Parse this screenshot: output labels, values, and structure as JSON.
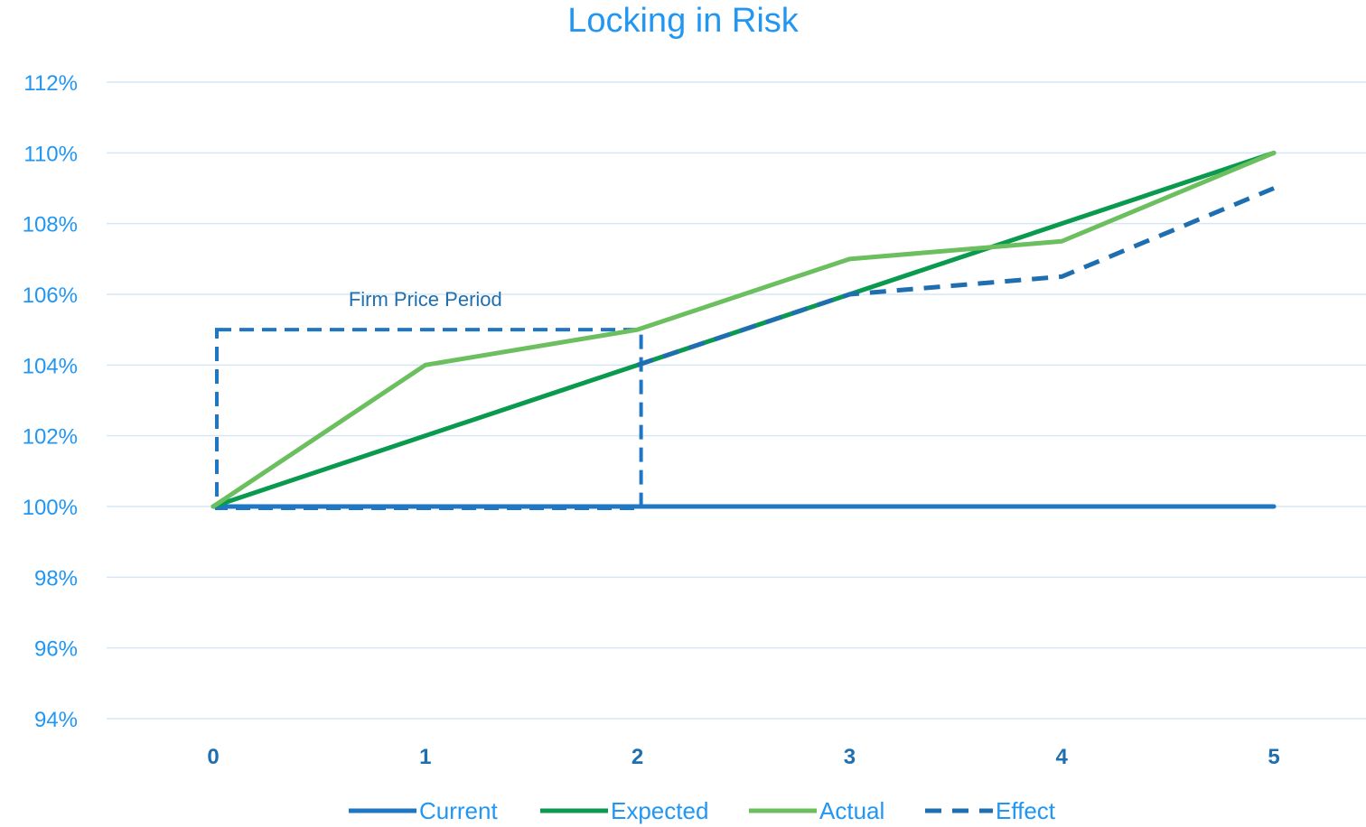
{
  "chart_data": {
    "type": "line",
    "title": "Locking in Risk",
    "xlabel": "",
    "ylabel": "",
    "x": [
      0,
      1,
      2,
      3,
      4,
      5
    ],
    "x_tick_labels": [
      "0",
      "1",
      "2",
      "3",
      "4",
      "5"
    ],
    "ylim": [
      94,
      112
    ],
    "y_ticks": [
      94,
      96,
      98,
      100,
      102,
      104,
      106,
      108,
      110,
      112
    ],
    "y_tick_labels": [
      "94%",
      "96%",
      "98%",
      "100%",
      "102%",
      "104%",
      "106%",
      "108%",
      "110%",
      "112%"
    ],
    "grid": true,
    "legend_position": "bottom",
    "series": [
      {
        "name": "Current",
        "x": [
          0,
          1,
          2,
          3,
          4,
          5
        ],
        "values": [
          100,
          100,
          100,
          100,
          100,
          100
        ],
        "color": "#1f77c4",
        "dashed": false
      },
      {
        "name": "Expected",
        "x": [
          0,
          1,
          2,
          3,
          4,
          5
        ],
        "values": [
          100,
          102,
          104,
          106,
          108,
          110
        ],
        "color": "#0a9a4f",
        "dashed": false
      },
      {
        "name": "Actual",
        "x": [
          0,
          1,
          2,
          3,
          4,
          5
        ],
        "values": [
          100,
          104,
          105,
          107,
          107.5,
          110
        ],
        "color": "#6cbf5e",
        "dashed": false
      },
      {
        "name": "Effect",
        "x": [
          2,
          3,
          4,
          5
        ],
        "values": [
          104,
          106,
          106.5,
          109
        ],
        "color": "#1f6fb0",
        "dashed": true
      }
    ],
    "annotations": [
      {
        "text": "Firm Price Period",
        "type": "dashed-box",
        "x_range": [
          0,
          2
        ],
        "y_range": [
          100,
          105
        ],
        "color": "#1f77c4"
      }
    ]
  }
}
